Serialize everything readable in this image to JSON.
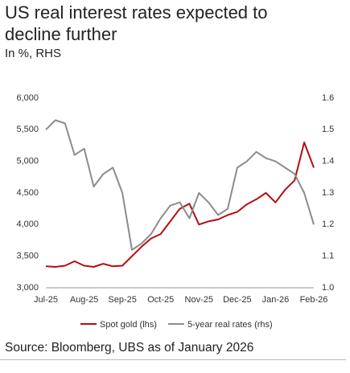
{
  "chart_data": {
    "type": "line",
    "title": "US real interest rates expected to decline further",
    "subtitle": "In %, RHS",
    "source": "Source: Bloomberg, UBS as of January 2026",
    "categories": [
      "Jul-25",
      null,
      null,
      null,
      "Aug-25",
      null,
      null,
      null,
      "Sep-25",
      null,
      null,
      null,
      "Oct-25",
      null,
      null,
      null,
      "Nov-25",
      null,
      null,
      null,
      "Dec-25",
      null,
      null,
      null,
      "Jan-26",
      null,
      null,
      null,
      "Feb-26"
    ],
    "series": [
      {
        "name": "Spot gold (lhs)",
        "color": "#b50d12",
        "axis": "y",
        "values": [
          3340,
          3330,
          3350,
          3420,
          3350,
          3330,
          3380,
          3340,
          3350,
          3500,
          3650,
          3780,
          3850,
          4050,
          4250,
          4330,
          4000,
          4050,
          4080,
          4150,
          4200,
          4320,
          4400,
          4500,
          4350,
          4550,
          4700,
          5300,
          4900
        ]
      },
      {
        "name": "5-year real rates (rhs)",
        "color": "#8c8c8c",
        "axis": "y2",
        "values": [
          1.5,
          1.53,
          1.52,
          1.42,
          1.44,
          1.32,
          1.36,
          1.38,
          1.3,
          1.12,
          1.14,
          1.17,
          1.22,
          1.26,
          1.27,
          1.22,
          1.3,
          1.27,
          1.23,
          1.25,
          1.38,
          1.4,
          1.43,
          1.41,
          1.4,
          1.38,
          1.36,
          1.3,
          1.2
        ]
      }
    ],
    "ylim": [
      3000,
      6000
    ],
    "yticks": [
      {
        "value": 3000,
        "label": "3,000"
      },
      {
        "value": 3500,
        "label": "3,500"
      },
      {
        "value": 4000,
        "label": "4,000"
      },
      {
        "value": 4500,
        "label": "4,500"
      },
      {
        "value": 5000,
        "label": "5,000"
      },
      {
        "value": 5500,
        "label": "5,500"
      },
      {
        "value": 6000,
        "label": "6,000"
      }
    ],
    "y2lim": [
      1.0,
      1.6
    ],
    "y2ticks": [
      {
        "value": 1.0,
        "label": "1.0"
      },
      1.1,
      1.2,
      1.3,
      1.4,
      1.5,
      1.6
    ],
    "grid": false
  }
}
